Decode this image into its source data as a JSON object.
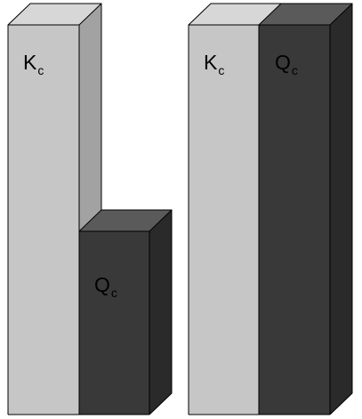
{
  "diagram": {
    "colors": {
      "k_front": "#c6c6c6",
      "k_top": "#d7d7d7",
      "k_side": "#a2a2a2",
      "q_front": "#393939",
      "q_top": "#5a5a5a",
      "q_side": "#2a2a2a",
      "outline": "#000000"
    },
    "groups": [
      {
        "name": "left-pair",
        "bars": [
          {
            "id": "k",
            "letter": "K",
            "subscript": "c",
            "relative_height": 1.0
          },
          {
            "id": "q",
            "letter": "Q",
            "subscript": "c",
            "relative_height": 0.47
          }
        ]
      },
      {
        "name": "right-pair",
        "bars": [
          {
            "id": "k",
            "letter": "K",
            "subscript": "c",
            "relative_height": 1.0
          },
          {
            "id": "q",
            "letter": "Q",
            "subscript": "c",
            "relative_height": 1.0
          }
        ]
      }
    ]
  }
}
